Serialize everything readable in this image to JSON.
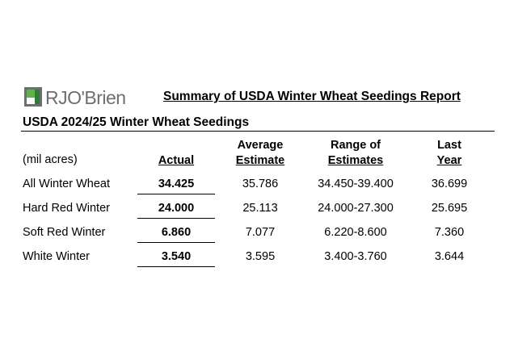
{
  "logo": {
    "text": "RJO'Brien",
    "icon": "rjobrien-logo-mark"
  },
  "report_title": "Summary of USDA Winter Wheat Seedings Report",
  "section_title": "USDA 2024/25 Winter Wheat Seedings",
  "table": {
    "units_label": "(mil acres)",
    "headers": {
      "actual": "Actual",
      "average": {
        "line1": "Average",
        "line2": "Estimate"
      },
      "range": {
        "line1": "Range of",
        "line2": "Estimates"
      },
      "last": {
        "line1": "Last",
        "line2": "Year"
      }
    },
    "rows": [
      {
        "label": "All Winter Wheat",
        "actual": "34.425",
        "average": "35.786",
        "range": "34.450-39.400",
        "last": "36.699"
      },
      {
        "label": "Hard Red Winter",
        "actual": "24.000",
        "average": "25.113",
        "range": "24.000-27.300",
        "last": "25.695"
      },
      {
        "label": "Soft Red Winter",
        "actual": "6.860",
        "average": "7.077",
        "range": "6.220-8.600",
        "last": "7.360"
      },
      {
        "label": "White Winter",
        "actual": "3.540",
        "average": "3.595",
        "range": "3.400-3.760",
        "last": "3.644"
      }
    ]
  }
}
